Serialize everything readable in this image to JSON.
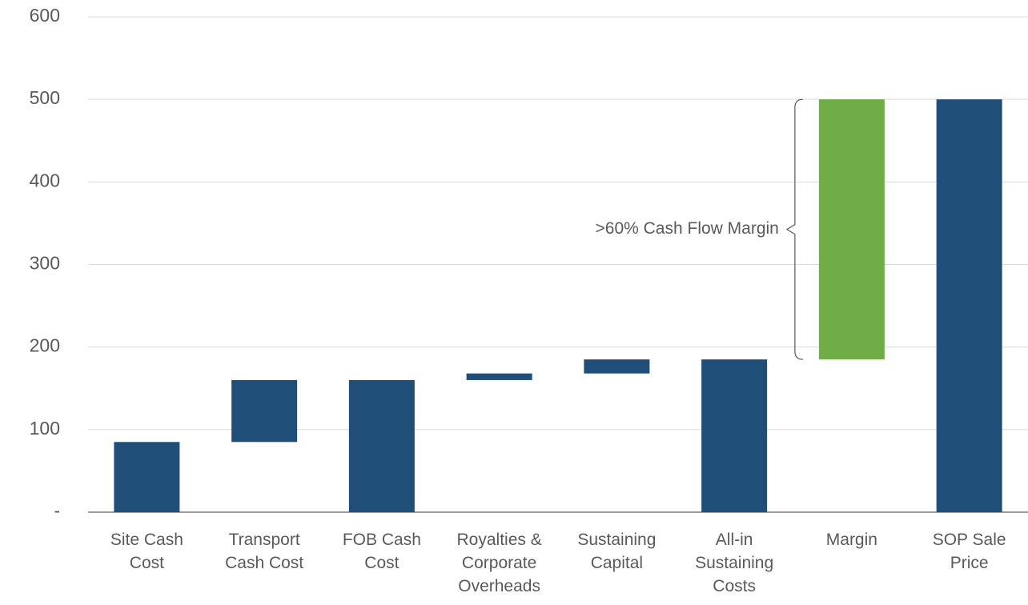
{
  "chart_data": {
    "type": "waterfall",
    "categories": [
      "Site Cash Cost",
      "Transport Cash Cost",
      "FOB Cash Cost",
      "Royalties & Corporate Overheads",
      "Sustaining Capital",
      "All-in Sustaining Costs",
      "Margin",
      "SOP Sale Price"
    ],
    "values": [
      85,
      75,
      160,
      8,
      17,
      185,
      315,
      500
    ],
    "measure": [
      "relative",
      "relative",
      "total",
      "relative",
      "relative",
      "total",
      "relative",
      "total"
    ],
    "colors": [
      "#1f4e79",
      "#1f4e79",
      "#1f4e79",
      "#1f4e79",
      "#1f4e79",
      "#1f4e79",
      "#70ad47",
      "#1f4e79"
    ],
    "ylim": [
      0,
      600
    ],
    "yticks": [
      {
        "value": 0,
        "label": "-"
      },
      100,
      200,
      300,
      400,
      500,
      600
    ],
    "grid": true,
    "annotation": {
      "text": ">60% Cash Flow Margin",
      "category": 6
    }
  }
}
